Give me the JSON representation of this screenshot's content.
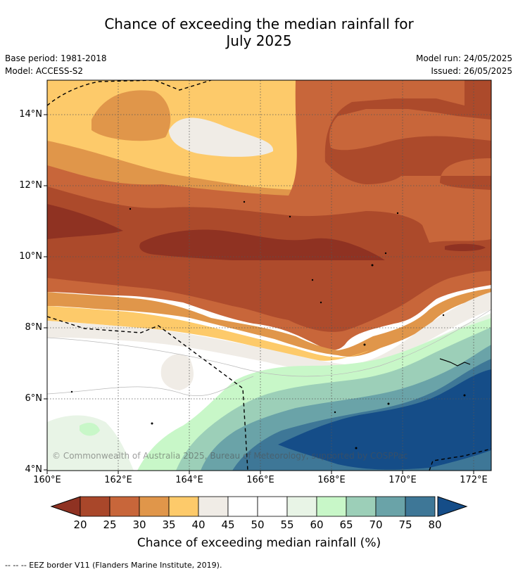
{
  "title_line1": "Chance of exceeding the median rainfall for",
  "title_line2": "July 2025",
  "meta_left": {
    "base_period": "Base period: 1981-2018",
    "model": "Model: ACCESS-S2"
  },
  "meta_right": {
    "model_run": "Model run: 24/05/2025",
    "issued": "Issued: 26/05/2025"
  },
  "map": {
    "lat_labels": [
      "14°N",
      "12°N",
      "10°N",
      "8°N",
      "6°N",
      "4°N"
    ],
    "lon_labels": [
      "160°E",
      "162°E",
      "164°E",
      "166°E",
      "168°E",
      "170°E",
      "172°E"
    ],
    "copyright": "© Commonwealth of Australia 2025, Bureau of Meteorology, supported by COSPPac",
    "eez_line": "dashed-black"
  },
  "colorbar": {
    "ticks": [
      "20",
      "25",
      "30",
      "35",
      "40",
      "45",
      "50",
      "55",
      "60",
      "65",
      "70",
      "75",
      "80"
    ],
    "colors": [
      "#a9472a",
      "#c8663a",
      "#e0964a",
      "#fdca6a",
      "#f0ece6",
      "#ffffff",
      "#ffffff",
      "#e8f4e6",
      "#c8f7c8",
      "#9ccfb8",
      "#6aa3a8",
      "#3e7797"
    ],
    "low_extend_color": "#8f3222",
    "high_extend_color": "#154d88",
    "title": "Chance of exceeding median rainfall (%)"
  },
  "footnote": "--  --  -- EEZ border V11 (Flanders Marine Institute, 2019)."
}
